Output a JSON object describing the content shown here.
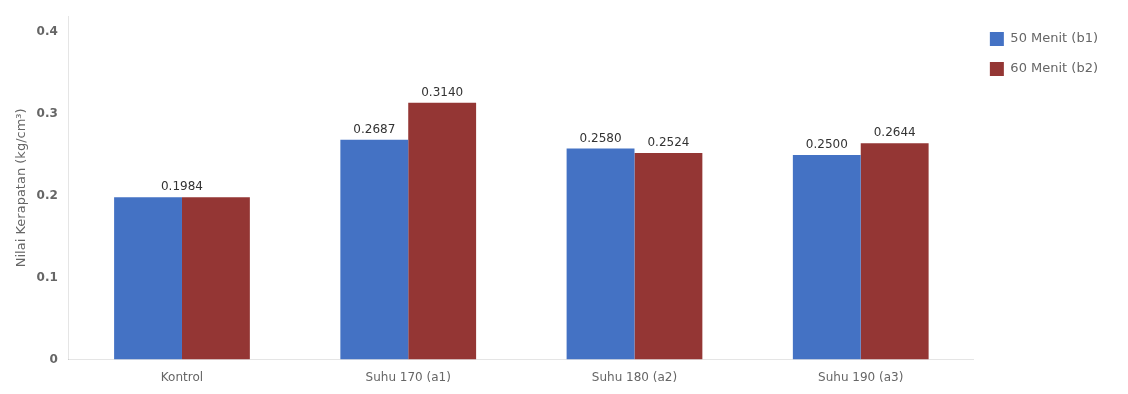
{
  "chart_data": {
    "type": "bar",
    "categories": [
      "Kontrol",
      "Suhu 170 (a1)",
      "Suhu 180 (a2)",
      "Suhu 190 (a3)"
    ],
    "series": [
      {
        "name": "50 Menit (b1)",
        "color": "#4472C4",
        "values": [
          0.1984,
          0.2687,
          0.258,
          0.25
        ],
        "value_labels": [
          "0.1984",
          "0.2687",
          "0.2580",
          "0.2500"
        ]
      },
      {
        "name": "60 Menit (b2)",
        "color": "#943634",
        "values": [
          0.1984,
          0.314,
          0.2524,
          0.2644
        ],
        "value_labels": [
          null,
          "0.3140",
          "0.2524",
          "0.2644"
        ]
      }
    ],
    "ylabel": "Nilai Kerapatan (kg/cm³)",
    "ylim": [
      0,
      0.42
    ],
    "yticks": [
      0,
      0.1,
      0.2,
      0.3,
      0.4
    ],
    "grid": false,
    "legend": "right",
    "data_labels": true
  }
}
